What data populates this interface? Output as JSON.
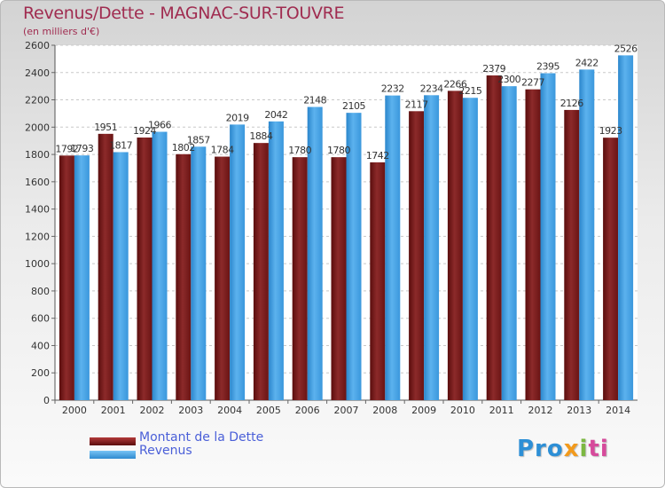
{
  "chart_data": {
    "type": "bar",
    "title": "Revenus/Dette - MAGNAC-SUR-TOUVRE",
    "subtitle": "(en milliers d'€)",
    "categories": [
      "2000",
      "2001",
      "2002",
      "2003",
      "2004",
      "2005",
      "2006",
      "2007",
      "2008",
      "2009",
      "2010",
      "2011",
      "2012",
      "2013",
      "2014"
    ],
    "series": [
      {
        "name": "Montant de la Dette",
        "color": "#7a1c1c",
        "values": [
          1792,
          1951,
          1924,
          1802,
          1784,
          1884,
          1780,
          1780,
          1742,
          2117,
          2266,
          2379,
          2277,
          2126,
          1923
        ],
        "labels": [
          "1792",
          "1951",
          "1924",
          "1802",
          "1784",
          "1884",
          "1780",
          "1780",
          "1742",
          "2117",
          "2266",
          "2379",
          "2277",
          "2126",
          "1923"
        ]
      },
      {
        "name": "Revenus",
        "color": "#3c9be0",
        "values": [
          1793,
          1817,
          1966,
          1857,
          2019,
          2042,
          2148,
          2105,
          2232,
          2234,
          2215,
          2300,
          2395,
          2422,
          2526
        ],
        "labels": [
          "1793",
          "1817",
          "1966",
          "1857",
          "2019",
          "2042",
          "2148",
          "2105",
          "2232",
          "2234",
          "2215",
          "2300",
          "2395",
          "2422",
          "2526"
        ]
      }
    ],
    "ylim": [
      0,
      2600
    ],
    "yticks": [
      0,
      200,
      400,
      600,
      800,
      1000,
      1200,
      1400,
      1600,
      1800,
      2000,
      2200,
      2400,
      2600
    ],
    "grid": true,
    "legend_position": "bottom-left"
  },
  "legend": {
    "dette_label": "Montant de la Dette",
    "revenus_label": "Revenus"
  },
  "logo": {
    "p1": "Pro",
    "p2": "x",
    "p3": "i",
    "p4": "ti"
  }
}
